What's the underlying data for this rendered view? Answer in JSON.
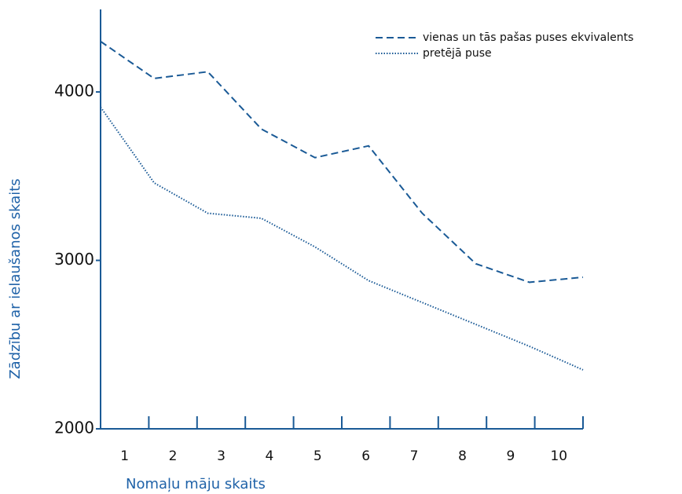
{
  "chart_data": {
    "type": "line",
    "xlabel": "Nomaļu māju skaits",
    "ylabel": "Zādzību ar ielaušanos skaits",
    "categories": [
      "1",
      "2",
      "3",
      "4",
      "5",
      "6",
      "7",
      "8",
      "9",
      "10"
    ],
    "series": [
      {
        "name": "vienas un tās pašas puses ekvivalents",
        "color": "#1a5a96",
        "dash": "9,5",
        "values": [
          4300,
          4080,
          4120,
          3780,
          3610,
          3680,
          3280,
          2980,
          2870,
          2900
        ]
      },
      {
        "name": "pretējā puse",
        "color": "#1a5a96",
        "dash": "1.5,2",
        "values": [
          3910,
          3460,
          3280,
          3250,
          3080,
          2880,
          2750,
          2620,
          2490,
          2350
        ]
      }
    ],
    "ylim": [
      2000,
      4490
    ],
    "yticks": [
      2000,
      3000,
      4000
    ],
    "legend": "top-right"
  }
}
